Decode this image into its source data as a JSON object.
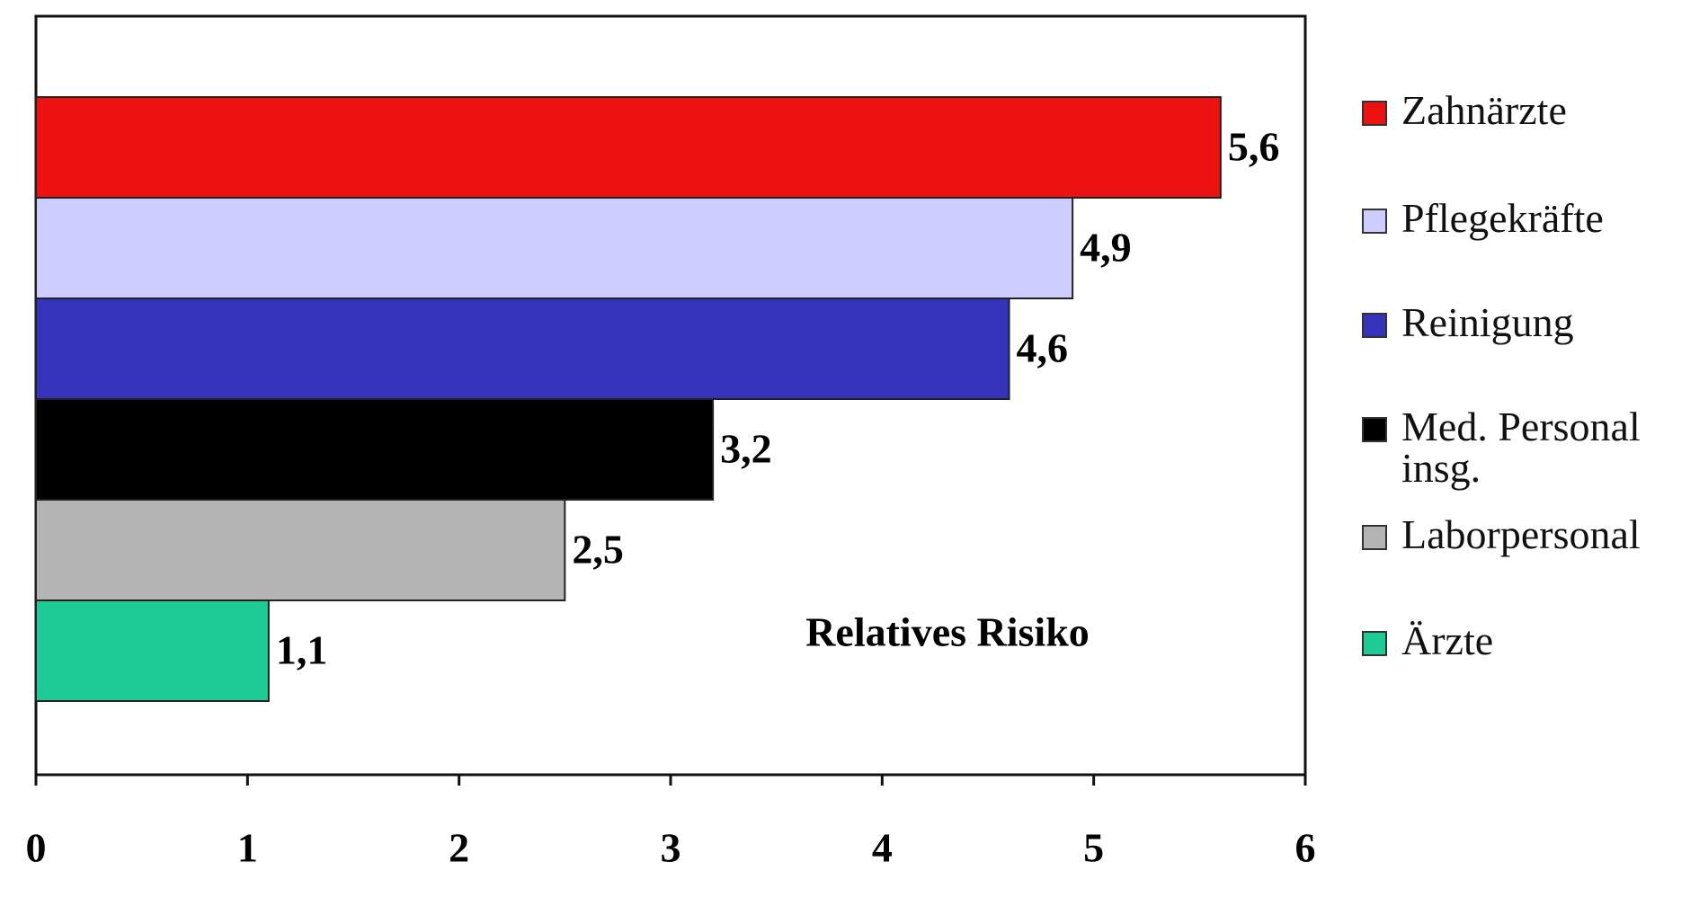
{
  "chart_data": {
    "type": "bar",
    "orientation": "horizontal",
    "annotation": "Relatives Risiko",
    "categories": [
      "Zahnärzte",
      "Pflegekräfte",
      "Reinigung",
      "Med. Personal insg.",
      "Laborpersonal",
      "Ärzte"
    ],
    "values": [
      5.6,
      4.9,
      4.6,
      3.2,
      2.5,
      1.1
    ],
    "value_labels": [
      "5,6",
      "4,9",
      "4,6",
      "3,2",
      "2,5",
      "1,1"
    ],
    "colors": [
      "#ee1111",
      "#ccccff",
      "#3333bb",
      "#000000",
      "#b4b4b4",
      "#1ecb96"
    ],
    "xlim": [
      0,
      6
    ],
    "xticks": [
      0,
      1,
      2,
      3,
      4,
      5,
      6
    ],
    "legend": "right"
  }
}
